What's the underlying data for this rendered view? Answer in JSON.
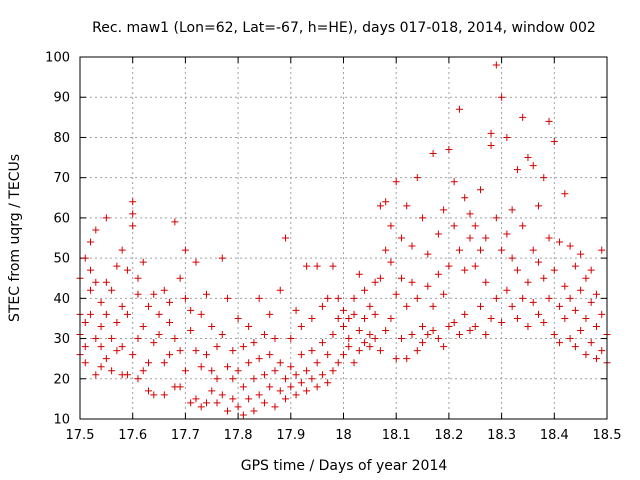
{
  "chart_data": {
    "type": "scatter",
    "title": "Rec. maw1 (Lon=62, Lat=-67, h=HE), days 017-018, 2014, window 002",
    "xlabel": "GPS time / Days of year 2014",
    "ylabel": "STEC from uqrg / TECUs",
    "xlim": [
      17.5,
      18.5
    ],
    "ylim": [
      10,
      100
    ],
    "xticks": [
      "17.5",
      "17.6",
      "17.7",
      "17.8",
      "17.9",
      "18",
      "18.1",
      "18.2",
      "18.3",
      "18.4",
      "18.5"
    ],
    "yticks": [
      "10",
      "20",
      "30",
      "40",
      "50",
      "60",
      "70",
      "80",
      "90",
      "100"
    ],
    "grid": true,
    "marker": "plus",
    "color": "#d40000",
    "points": [
      [
        17.5,
        26
      ],
      [
        17.5,
        31
      ],
      [
        17.5,
        36
      ],
      [
        17.5,
        45
      ],
      [
        17.51,
        28
      ],
      [
        17.51,
        34
      ],
      [
        17.51,
        50
      ],
      [
        17.51,
        24
      ],
      [
        17.52,
        36
      ],
      [
        17.52,
        42
      ],
      [
        17.52,
        54
      ],
      [
        17.52,
        47
      ],
      [
        17.53,
        30
      ],
      [
        17.53,
        21
      ],
      [
        17.53,
        44
      ],
      [
        17.53,
        57
      ],
      [
        17.54,
        23
      ],
      [
        17.54,
        33
      ],
      [
        17.54,
        39
      ],
      [
        17.54,
        28
      ],
      [
        17.55,
        36
      ],
      [
        17.55,
        60
      ],
      [
        17.55,
        44
      ],
      [
        17.55,
        25
      ],
      [
        17.56,
        22
      ],
      [
        17.56,
        30
      ],
      [
        17.56,
        42
      ],
      [
        17.57,
        27
      ],
      [
        17.57,
        34
      ],
      [
        17.57,
        48
      ],
      [
        17.58,
        21
      ],
      [
        17.58,
        28
      ],
      [
        17.58,
        52
      ],
      [
        17.58,
        38
      ],
      [
        17.59,
        21
      ],
      [
        17.59,
        36
      ],
      [
        17.59,
        47
      ],
      [
        17.6,
        64
      ],
      [
        17.6,
        58
      ],
      [
        17.6,
        61
      ],
      [
        17.6,
        26
      ],
      [
        17.61,
        20
      ],
      [
        17.61,
        30
      ],
      [
        17.61,
        45
      ],
      [
        17.61,
        41
      ],
      [
        17.62,
        22
      ],
      [
        17.62,
        49
      ],
      [
        17.62,
        33
      ],
      [
        17.63,
        17
      ],
      [
        17.63,
        24
      ],
      [
        17.63,
        38
      ],
      [
        17.64,
        16
      ],
      [
        17.64,
        29
      ],
      [
        17.64,
        41
      ],
      [
        17.65,
        31
      ],
      [
        17.65,
        36
      ],
      [
        17.66,
        16
      ],
      [
        17.66,
        24
      ],
      [
        17.66,
        42
      ],
      [
        17.67,
        26
      ],
      [
        17.67,
        34
      ],
      [
        17.67,
        39
      ],
      [
        17.68,
        18
      ],
      [
        17.68,
        59
      ],
      [
        17.68,
        30
      ],
      [
        17.69,
        18
      ],
      [
        17.69,
        45
      ],
      [
        17.69,
        27
      ],
      [
        17.7,
        22
      ],
      [
        17.7,
        52
      ],
      [
        17.7,
        40
      ],
      [
        17.71,
        14
      ],
      [
        17.71,
        37
      ],
      [
        17.71,
        32
      ],
      [
        17.72,
        15
      ],
      [
        17.72,
        27
      ],
      [
        17.72,
        49
      ],
      [
        17.73,
        13
      ],
      [
        17.73,
        36
      ],
      [
        17.73,
        23
      ],
      [
        17.74,
        14
      ],
      [
        17.74,
        26
      ],
      [
        17.74,
        41
      ],
      [
        17.75,
        17
      ],
      [
        17.75,
        22
      ],
      [
        17.75,
        33
      ],
      [
        17.76,
        14
      ],
      [
        17.76,
        28
      ],
      [
        17.76,
        20
      ],
      [
        17.77,
        50
      ],
      [
        17.77,
        31
      ],
      [
        17.77,
        16
      ],
      [
        17.78,
        12
      ],
      [
        17.78,
        23
      ],
      [
        17.78,
        40
      ],
      [
        17.79,
        15
      ],
      [
        17.79,
        27
      ],
      [
        17.79,
        20
      ],
      [
        17.8,
        13
      ],
      [
        17.8,
        22
      ],
      [
        17.8,
        35
      ],
      [
        17.81,
        11
      ],
      [
        17.81,
        18
      ],
      [
        17.81,
        28
      ],
      [
        17.82,
        15
      ],
      [
        17.82,
        24
      ],
      [
        17.82,
        33
      ],
      [
        17.83,
        12
      ],
      [
        17.83,
        20
      ],
      [
        17.83,
        29
      ],
      [
        17.84,
        16
      ],
      [
        17.84,
        25
      ],
      [
        17.84,
        40
      ],
      [
        17.85,
        14
      ],
      [
        17.85,
        21
      ],
      [
        17.85,
        31
      ],
      [
        17.86,
        18
      ],
      [
        17.86,
        26
      ],
      [
        17.86,
        36
      ],
      [
        17.87,
        13
      ],
      [
        17.87,
        22
      ],
      [
        17.87,
        30
      ],
      [
        17.88,
        17
      ],
      [
        17.88,
        24
      ],
      [
        17.88,
        42
      ],
      [
        17.89,
        15
      ],
      [
        17.89,
        20
      ],
      [
        17.89,
        55
      ],
      [
        17.9,
        18
      ],
      [
        17.9,
        23
      ],
      [
        17.9,
        30
      ],
      [
        17.91,
        16
      ],
      [
        17.91,
        21
      ],
      [
        17.91,
        37
      ],
      [
        17.92,
        19
      ],
      [
        17.92,
        26
      ],
      [
        17.92,
        33
      ],
      [
        17.93,
        17
      ],
      [
        17.93,
        22
      ],
      [
        17.93,
        48
      ],
      [
        17.94,
        20
      ],
      [
        17.94,
        27
      ],
      [
        17.94,
        35
      ],
      [
        17.95,
        18
      ],
      [
        17.95,
        24
      ],
      [
        17.95,
        48
      ],
      [
        17.96,
        21
      ],
      [
        17.96,
        29
      ],
      [
        17.96,
        38
      ],
      [
        17.97,
        19
      ],
      [
        17.97,
        26
      ],
      [
        17.97,
        40
      ],
      [
        17.98,
        22
      ],
      [
        17.98,
        31
      ],
      [
        17.98,
        48
      ],
      [
        17.99,
        24
      ],
      [
        17.99,
        35
      ],
      [
        17.99,
        40
      ],
      [
        18.0,
        26
      ],
      [
        18.0,
        33
      ],
      [
        18.0,
        37
      ],
      [
        18.01,
        28
      ],
      [
        18.01,
        30
      ],
      [
        18.01,
        35
      ],
      [
        18.02,
        24
      ],
      [
        18.02,
        36
      ],
      [
        18.02,
        40
      ],
      [
        18.03,
        27
      ],
      [
        18.03,
        32
      ],
      [
        18.03,
        46
      ],
      [
        18.04,
        29
      ],
      [
        18.04,
        35
      ],
      [
        18.04,
        42
      ],
      [
        18.05,
        28
      ],
      [
        18.05,
        38
      ],
      [
        18.05,
        31
      ],
      [
        18.06,
        30
      ],
      [
        18.06,
        44
      ],
      [
        18.06,
        36
      ],
      [
        18.07,
        27
      ],
      [
        18.07,
        45
      ],
      [
        18.07,
        63
      ],
      [
        18.08,
        32
      ],
      [
        18.08,
        52
      ],
      [
        18.08,
        64
      ],
      [
        18.09,
        35
      ],
      [
        18.09,
        49
      ],
      [
        18.09,
        58
      ],
      [
        18.1,
        25
      ],
      [
        18.1,
        41
      ],
      [
        18.1,
        69
      ],
      [
        18.11,
        30
      ],
      [
        18.11,
        45
      ],
      [
        18.11,
        55
      ],
      [
        18.12,
        25
      ],
      [
        18.12,
        38
      ],
      [
        18.12,
        63
      ],
      [
        18.13,
        31
      ],
      [
        18.13,
        44
      ],
      [
        18.13,
        53
      ],
      [
        18.14,
        27
      ],
      [
        18.14,
        40
      ],
      [
        18.14,
        70
      ],
      [
        18.15,
        29
      ],
      [
        18.15,
        33
      ],
      [
        18.15,
        60
      ],
      [
        18.16,
        31
      ],
      [
        18.16,
        43
      ],
      [
        18.16,
        51
      ],
      [
        18.17,
        32
      ],
      [
        18.17,
        38
      ],
      [
        18.17,
        76
      ],
      [
        18.18,
        30
      ],
      [
        18.18,
        46
      ],
      [
        18.18,
        56
      ],
      [
        18.19,
        28
      ],
      [
        18.19,
        41
      ],
      [
        18.19,
        62
      ],
      [
        18.2,
        33
      ],
      [
        18.2,
        48
      ],
      [
        18.2,
        77
      ],
      [
        18.21,
        34
      ],
      [
        18.21,
        58
      ],
      [
        18.21,
        69
      ],
      [
        18.22,
        31
      ],
      [
        18.22,
        52
      ],
      [
        18.22,
        87
      ],
      [
        18.23,
        36
      ],
      [
        18.23,
        47
      ],
      [
        18.23,
        65
      ],
      [
        18.24,
        32
      ],
      [
        18.24,
        55
      ],
      [
        18.24,
        61
      ],
      [
        18.25,
        33
      ],
      [
        18.25,
        48
      ],
      [
        18.25,
        58
      ],
      [
        18.26,
        38
      ],
      [
        18.26,
        52
      ],
      [
        18.26,
        67
      ],
      [
        18.27,
        31
      ],
      [
        18.27,
        44
      ],
      [
        18.27,
        55
      ],
      [
        18.28,
        35
      ],
      [
        18.28,
        78
      ],
      [
        18.28,
        81
      ],
      [
        18.29,
        40
      ],
      [
        18.29,
        60
      ],
      [
        18.29,
        98
      ],
      [
        18.3,
        34
      ],
      [
        18.3,
        52
      ],
      [
        18.3,
        90
      ],
      [
        18.31,
        42
      ],
      [
        18.31,
        56
      ],
      [
        18.31,
        80
      ],
      [
        18.32,
        38
      ],
      [
        18.32,
        50
      ],
      [
        18.32,
        62
      ],
      [
        18.33,
        35
      ],
      [
        18.33,
        47
      ],
      [
        18.33,
        72
      ],
      [
        18.34,
        40
      ],
      [
        18.34,
        58
      ],
      [
        18.34,
        85
      ],
      [
        18.35,
        33
      ],
      [
        18.35,
        44
      ],
      [
        18.35,
        75
      ],
      [
        18.36,
        39
      ],
      [
        18.36,
        52
      ],
      [
        18.36,
        73
      ],
      [
        18.37,
        36
      ],
      [
        18.37,
        49
      ],
      [
        18.37,
        63
      ],
      [
        18.38,
        34
      ],
      [
        18.38,
        45
      ],
      [
        18.38,
        70
      ],
      [
        18.39,
        40
      ],
      [
        18.39,
        55
      ],
      [
        18.39,
        84
      ],
      [
        18.4,
        31
      ],
      [
        18.4,
        47
      ],
      [
        18.4,
        79
      ],
      [
        18.41,
        29
      ],
      [
        18.41,
        38
      ],
      [
        18.41,
        54
      ],
      [
        18.42,
        35
      ],
      [
        18.42,
        43
      ],
      [
        18.42,
        66
      ],
      [
        18.43,
        30
      ],
      [
        18.43,
        40
      ],
      [
        18.43,
        53
      ],
      [
        18.44,
        28
      ],
      [
        18.44,
        37
      ],
      [
        18.44,
        48
      ],
      [
        18.45,
        32
      ],
      [
        18.45,
        42
      ],
      [
        18.45,
        51
      ],
      [
        18.46,
        26
      ],
      [
        18.46,
        35
      ],
      [
        18.46,
        45
      ],
      [
        18.47,
        29
      ],
      [
        18.47,
        39
      ],
      [
        18.47,
        47
      ],
      [
        18.48,
        25
      ],
      [
        18.48,
        33
      ],
      [
        18.48,
        41
      ],
      [
        18.49,
        27
      ],
      [
        18.49,
        36
      ],
      [
        18.49,
        52
      ],
      [
        18.5,
        24
      ],
      [
        18.5,
        31
      ]
    ]
  }
}
